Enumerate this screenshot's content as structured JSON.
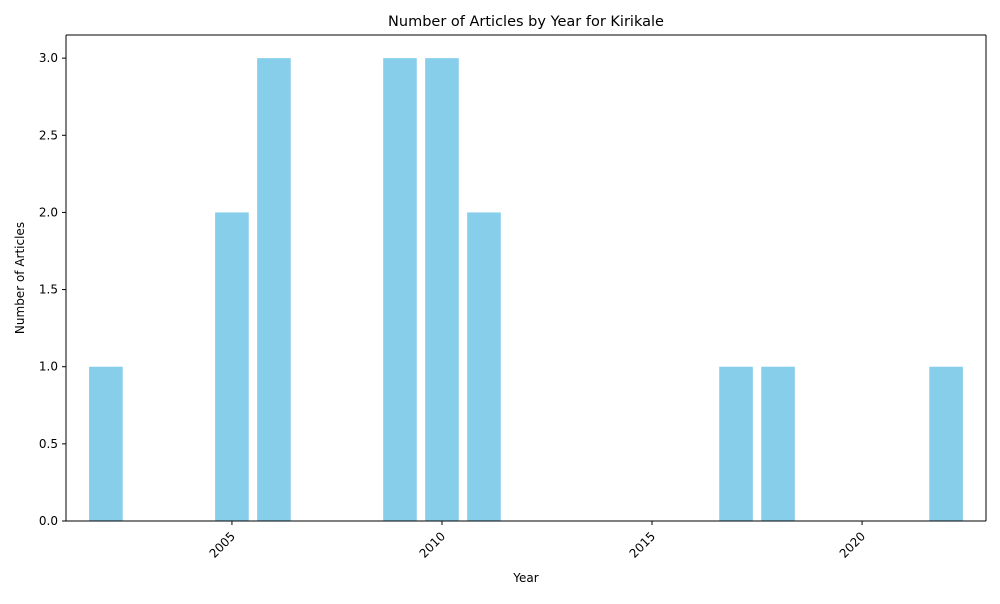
{
  "chart_data": {
    "type": "bar",
    "title": "Number of Articles by Year for Kirikale",
    "xlabel": "Year",
    "ylabel": "Number of Articles",
    "x": [
      2002,
      2005,
      2006,
      2009,
      2010,
      2011,
      2017,
      2018,
      2022
    ],
    "values": [
      1,
      2,
      3,
      3,
      3,
      2,
      1,
      1,
      1
    ],
    "xlim": [
      2001.05,
      2022.95
    ],
    "ylim": [
      0,
      3.15
    ],
    "xticks": [
      2005,
      2010,
      2015,
      2020
    ],
    "yticks": [
      "0.0",
      "0.5",
      "1.0",
      "1.5",
      "2.0",
      "2.5",
      "3.0"
    ],
    "bar_color": "#87ceeb",
    "grid": false,
    "legend": "none"
  }
}
